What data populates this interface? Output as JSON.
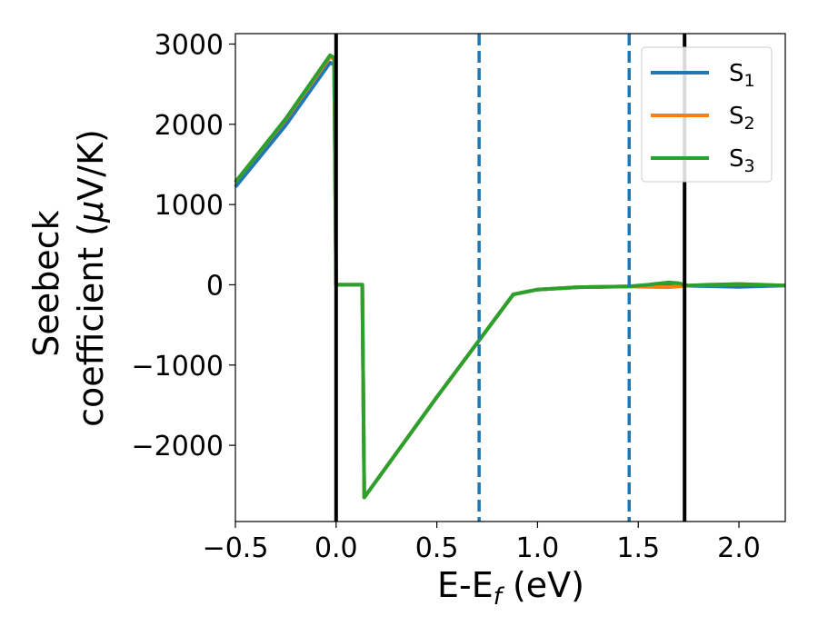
{
  "chart_data": {
    "type": "line",
    "xlabel": {
      "main": "E-E",
      "sub": "f",
      "unit": " (eV)"
    },
    "ylabel": {
      "line1": "Seebeck",
      "line2_prefix": "coefficient  (",
      "line2_mu": "μ",
      "line2_suffix": "V/K)"
    },
    "xlim": [
      -0.5,
      2.23
    ],
    "ylim": [
      -2950,
      3130
    ],
    "xticks": [
      -0.5,
      0.0,
      0.5,
      1.0,
      1.5,
      2.0
    ],
    "xtick_labels": [
      "−0.5",
      "0.0",
      "0.5",
      "1.0",
      "1.5",
      "2.0"
    ],
    "yticks": [
      -2000,
      -1000,
      0,
      1000,
      2000,
      3000
    ],
    "ytick_labels": [
      "−2000",
      "−1000",
      "0",
      "1000",
      "2000",
      "3000"
    ],
    "grid": false,
    "legend_position": "top-right",
    "vertical_lines": [
      {
        "x": 0.0,
        "style": "solid",
        "color": "#000000"
      },
      {
        "x": 0.71,
        "style": "dashed",
        "color": "#1f77b4"
      },
      {
        "x": 1.455,
        "style": "dashed",
        "color": "#1f77b4"
      },
      {
        "x": 1.73,
        "style": "solid",
        "color": "#000000"
      }
    ],
    "series": [
      {
        "name": "S",
        "sub": "1",
        "color": "#1f77b4",
        "points": [
          [
            -0.5,
            1220
          ],
          [
            -0.25,
            1990
          ],
          [
            -0.03,
            2770
          ],
          [
            -0.01,
            2740
          ],
          [
            0.0,
            0
          ],
          [
            0.13,
            0
          ],
          [
            0.14,
            -2650
          ],
          [
            0.5,
            -1400
          ],
          [
            0.88,
            -120
          ],
          [
            1.0,
            -60
          ],
          [
            1.2,
            -30
          ],
          [
            1.45,
            -20
          ],
          [
            1.7,
            -10
          ],
          [
            1.9,
            -20
          ],
          [
            2.0,
            -25
          ],
          [
            2.23,
            -10
          ]
        ]
      },
      {
        "name": "S",
        "sub": "2",
        "color": "#ff7f0e",
        "points": [
          [
            -0.5,
            1280
          ],
          [
            -0.25,
            2060
          ],
          [
            -0.03,
            2840
          ],
          [
            -0.01,
            2810
          ],
          [
            0.0,
            0
          ],
          [
            0.13,
            0
          ],
          [
            0.14,
            -2650
          ],
          [
            0.5,
            -1400
          ],
          [
            0.88,
            -120
          ],
          [
            1.0,
            -60
          ],
          [
            1.2,
            -30
          ],
          [
            1.45,
            -20
          ],
          [
            1.55,
            -25
          ],
          [
            1.65,
            -30
          ],
          [
            1.75,
            -10
          ],
          [
            1.9,
            0
          ],
          [
            2.0,
            10
          ],
          [
            2.23,
            -10
          ]
        ]
      },
      {
        "name": "S",
        "sub": "3",
        "color": "#2ca02c",
        "points": [
          [
            -0.5,
            1280
          ],
          [
            -0.25,
            2070
          ],
          [
            -0.03,
            2860
          ],
          [
            -0.01,
            2830
          ],
          [
            0.0,
            0
          ],
          [
            0.13,
            0
          ],
          [
            0.14,
            -2650
          ],
          [
            0.5,
            -1400
          ],
          [
            0.88,
            -120
          ],
          [
            1.0,
            -60
          ],
          [
            1.2,
            -30
          ],
          [
            1.45,
            -20
          ],
          [
            1.55,
            0
          ],
          [
            1.65,
            30
          ],
          [
            1.7,
            20
          ],
          [
            1.75,
            -10
          ],
          [
            1.85,
            0
          ],
          [
            2.0,
            10
          ],
          [
            2.1,
            0
          ],
          [
            2.23,
            -10
          ]
        ]
      }
    ]
  }
}
